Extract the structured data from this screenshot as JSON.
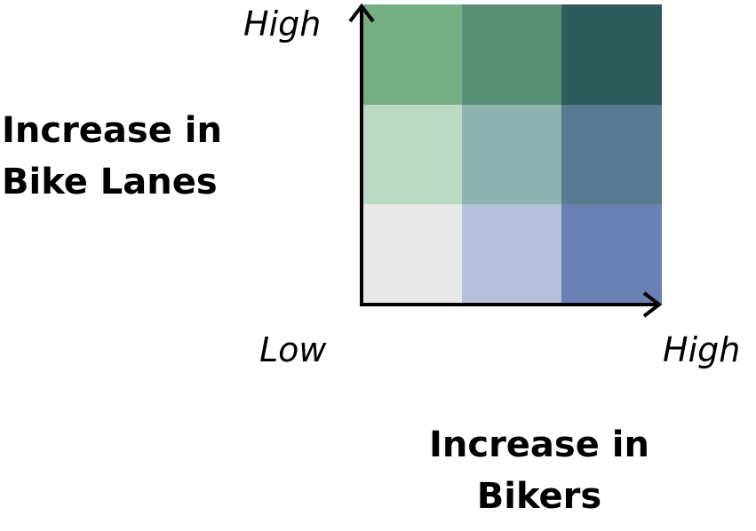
{
  "legend": {
    "y_axis_title_line1": "Increase in",
    "y_axis_title_line2": "Bike Lanes",
    "x_axis_title_line1": "Increase in",
    "x_axis_title_line2": "Bikers",
    "y_high_label": "High",
    "x_low_label": "Low",
    "x_high_label": "High",
    "axis_color": "#000000",
    "cells": [
      {
        "row": "high",
        "col": "low",
        "color": "#76ae83"
      },
      {
        "row": "high",
        "col": "mid",
        "color": "#5a9078"
      },
      {
        "row": "high",
        "col": "high",
        "color": "#2e5b5b"
      },
      {
        "row": "mid",
        "col": "low",
        "color": "#bcdac3"
      },
      {
        "row": "mid",
        "col": "mid",
        "color": "#8fb3b1"
      },
      {
        "row": "mid",
        "col": "high",
        "color": "#577b90"
      },
      {
        "row": "low",
        "col": "low",
        "color": "#e8e8e8"
      },
      {
        "row": "low",
        "col": "mid",
        "color": "#b5c0da"
      },
      {
        "row": "low",
        "col": "high",
        "color": "#6b80b3"
      }
    ]
  }
}
